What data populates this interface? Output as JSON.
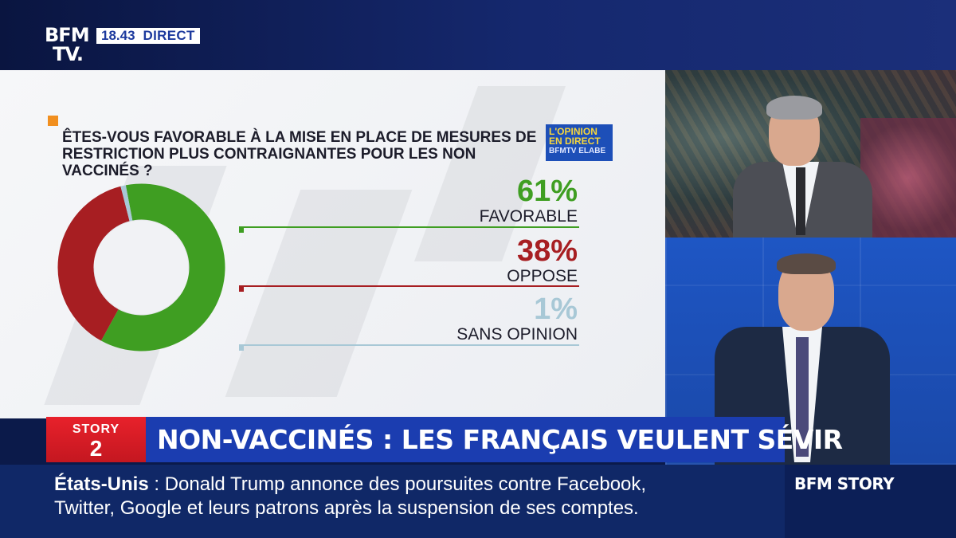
{
  "header": {
    "logo_line1": "BFM",
    "logo_line2": "TV.",
    "time": "18.43",
    "live": "DIRECT"
  },
  "poll": {
    "question": "Êtes-vous favorable à la mise en place de mesures de restriction plus contraignantes pour les non vaccinés ?",
    "badge": {
      "line1": "L'OPINION",
      "line2": "EN DIRECT",
      "line3": "BFMTV ELABE"
    },
    "colors": {
      "favorable": "#3f9e22",
      "oppose": "#a71e22",
      "sans_opinion": "#a8c8d6",
      "bullet": "#f18f1f"
    }
  },
  "chart_data": {
    "type": "pie",
    "categories": [
      "FAVORABLE",
      "OPPOSE",
      "SANS OPINION"
    ],
    "values": [
      61,
      38,
      1
    ],
    "value_labels": [
      "61%",
      "38%",
      "1%"
    ],
    "style": "donut"
  },
  "banner": {
    "story_label": "STORY",
    "story_number": "2",
    "headline": "NON-VACCINÉS : LES FRANÇAIS VEULENT SÉVIR"
  },
  "ticker": {
    "location": "États-Unis",
    "separator": " : ",
    "line1_text": "Donald Trump annonce des poursuites contre Facebook,",
    "line2_text": "Twitter, Google et leurs patrons après la suspension de ses comptes."
  },
  "channel": {
    "name": "BFM STORY"
  }
}
